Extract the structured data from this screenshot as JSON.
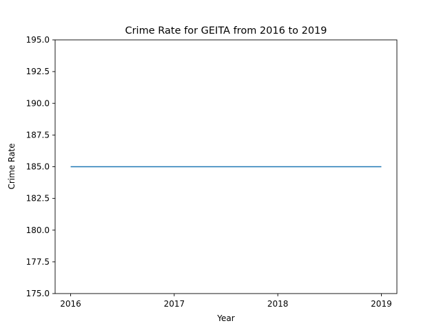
{
  "chart_data": {
    "type": "line",
    "title": "Crime Rate for GEITA from 2016 to 2019",
    "xlabel": "Year",
    "ylabel": "Crime Rate",
    "x": [
      2016,
      2017,
      2018,
      2019
    ],
    "x_ticks": [
      "2016",
      "2017",
      "2018",
      "2019"
    ],
    "y_ticks": [
      "175.0",
      "177.5",
      "180.0",
      "182.5",
      "185.0",
      "187.5",
      "190.0",
      "192.5",
      "195.0"
    ],
    "ylim": [
      175,
      195
    ],
    "xlim": [
      2015.85,
      2019.15
    ],
    "grid": false,
    "series": [
      {
        "values": [
          185,
          185,
          185,
          185
        ],
        "color": "#1f77b4"
      }
    ]
  }
}
